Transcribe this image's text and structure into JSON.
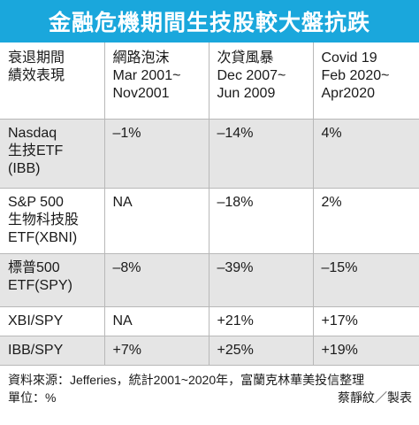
{
  "title": "金融危機期間生技股較大盤抗跌",
  "header": [
    [
      "衰退期間",
      "績效表現"
    ],
    [
      "網路泡沫",
      "Mar 2001~",
      "Nov2001"
    ],
    [
      "次貸風暴",
      "Dec 2007~",
      "Jun 2009"
    ],
    [
      "Covid 19",
      "Feb 2020~",
      "Apr2020"
    ]
  ],
  "rows": [
    {
      "label": [
        "Nasdaq",
        "生技ETF",
        "(IBB)"
      ],
      "values": [
        "–1%",
        "–14%",
        "4%"
      ]
    },
    {
      "label": [
        "S&P 500",
        "生物科技股",
        "ETF(XBNI)"
      ],
      "values": [
        "NA",
        "–18%",
        "2%"
      ]
    },
    {
      "label": [
        "標普500",
        "ETF(SPY)"
      ],
      "values": [
        "–8%",
        "–39%",
        "–15%"
      ]
    },
    {
      "label": [
        "XBI/SPY"
      ],
      "values": [
        "NA",
        "+21%",
        "+17%"
      ]
    },
    {
      "label": [
        "IBB/SPY"
      ],
      "values": [
        "+7%",
        "+25%",
        "+19%"
      ]
    }
  ],
  "footer": {
    "source": "資料來源：Jefferies，統計2001~2020年，富蘭克林華美投信整理",
    "unit": "單位：%",
    "credit": "蔡靜紋／製表"
  }
}
